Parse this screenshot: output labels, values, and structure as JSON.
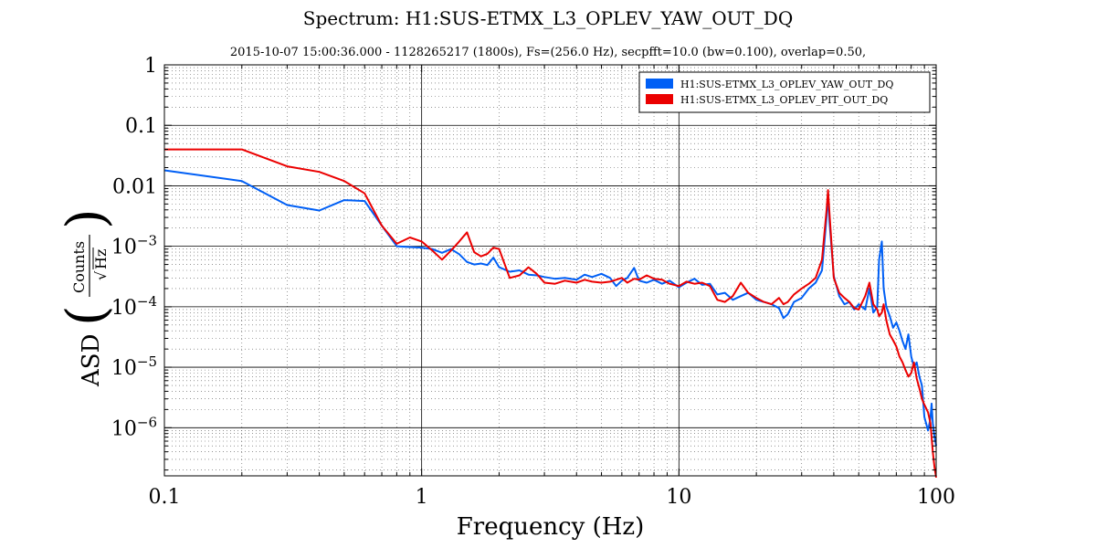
{
  "chart_data": {
    "type": "line",
    "title": "Spectrum: H1:SUS-ETMX_L3_OPLEV_YAW_OUT_DQ",
    "subtitle": "2015-10-07 15:00:36.000 - 1128265217 (1800s), Fs=(256.0 Hz), secpfft=10.0 (bw=0.100), overlap=0.50,",
    "xlabel": "Frequency (Hz)",
    "ylabel": {
      "prefix": "ASD",
      "numerator": "Counts",
      "denominator": "Hz"
    },
    "xscale": "log",
    "yscale": "log",
    "xlim": [
      0.1,
      100
    ],
    "ylim": [
      1.6e-07,
      1.0
    ],
    "grid": true,
    "legend_position": "top-right",
    "x_ticks": [
      {
        "value": 0.1,
        "label": "0.1"
      },
      {
        "value": 1,
        "label": "1"
      },
      {
        "value": 10,
        "label": "10"
      },
      {
        "value": 100,
        "label": "100"
      }
    ],
    "y_ticks": [
      {
        "value": 1,
        "label": "1"
      },
      {
        "value": 0.1,
        "label": "0.1"
      },
      {
        "value": 0.01,
        "label": "0.01"
      },
      {
        "value": 0.001,
        "label_base": "10",
        "label_exp": "−3"
      },
      {
        "value": 0.0001,
        "label_base": "10",
        "label_exp": "−4"
      },
      {
        "value": 1e-05,
        "label_base": "10",
        "label_exp": "−5"
      },
      {
        "value": 1e-06,
        "label_base": "10",
        "label_exp": "−6"
      }
    ],
    "series": [
      {
        "name": "H1:SUS-ETMX_L3_OPLEV_YAW_OUT_DQ",
        "color": "#005ff5",
        "points": [
          [
            0.1,
            0.018
          ],
          [
            0.2,
            0.012
          ],
          [
            0.3,
            0.0048
          ],
          [
            0.4,
            0.0039
          ],
          [
            0.5,
            0.0058
          ],
          [
            0.6,
            0.0056
          ],
          [
            0.7,
            0.0022
          ],
          [
            0.8,
            0.001
          ],
          [
            0.9,
            0.00097
          ],
          [
            1.0,
            0.00095
          ],
          [
            1.1,
            0.0009
          ],
          [
            1.2,
            0.00078
          ],
          [
            1.3,
            0.0009
          ],
          [
            1.4,
            0.00074
          ],
          [
            1.5,
            0.00055
          ],
          [
            1.6,
            0.0005
          ],
          [
            1.7,
            0.00052
          ],
          [
            1.8,
            0.00049
          ],
          [
            1.9,
            0.00065
          ],
          [
            2.0,
            0.00045
          ],
          [
            2.2,
            0.00038
          ],
          [
            2.4,
            0.0004
          ],
          [
            2.6,
            0.00034
          ],
          [
            2.8,
            0.00033
          ],
          [
            3.0,
            0.00031
          ],
          [
            3.3,
            0.00029
          ],
          [
            3.6,
            0.0003
          ],
          [
            4.0,
            0.00028
          ],
          [
            4.3,
            0.00034
          ],
          [
            4.6,
            0.00031
          ],
          [
            5.0,
            0.00035
          ],
          [
            5.4,
            0.0003
          ],
          [
            5.7,
            0.00022
          ],
          [
            6.0,
            0.00027
          ],
          [
            6.3,
            0.0003
          ],
          [
            6.7,
            0.00044
          ],
          [
            7.0,
            0.00027
          ],
          [
            7.5,
            0.00025
          ],
          [
            8.0,
            0.00028
          ],
          [
            8.6,
            0.00024
          ],
          [
            9.2,
            0.00027
          ],
          [
            10.0,
            0.00021
          ],
          [
            10.7,
            0.00025
          ],
          [
            11.5,
            0.00029
          ],
          [
            12.3,
            0.00023
          ],
          [
            13.2,
            0.00024
          ],
          [
            14.1,
            0.00016
          ],
          [
            15.1,
            0.00017
          ],
          [
            16.2,
            0.00013
          ],
          [
            17.4,
            0.00015
          ],
          [
            18.6,
            0.00017
          ],
          [
            20.0,
            0.00013
          ],
          [
            21.4,
            0.00012
          ],
          [
            22.9,
            0.00011
          ],
          [
            24.5,
            9.5e-05
          ],
          [
            25.5,
            6.5e-05
          ],
          [
            26.5,
            7.5e-05
          ],
          [
            28.0,
            0.00012
          ],
          [
            30.0,
            0.00014
          ],
          [
            32.0,
            0.0002
          ],
          [
            34.0,
            0.00025
          ],
          [
            36.0,
            0.0004
          ],
          [
            37.5,
            0.003
          ],
          [
            38.0,
            0.0075
          ],
          [
            38.5,
            0.0025
          ],
          [
            40.0,
            0.00032
          ],
          [
            42.0,
            0.00015
          ],
          [
            44.0,
            0.00011
          ],
          [
            46.0,
            0.00012
          ],
          [
            48.0,
            9e-05
          ],
          [
            50.0,
            0.00011
          ],
          [
            53.0,
            9e-05
          ],
          [
            55.0,
            0.0002
          ],
          [
            57.0,
            8e-05
          ],
          [
            59.0,
            0.0001
          ],
          [
            60.0,
            0.0006
          ],
          [
            61.5,
            0.0012
          ],
          [
            62.5,
            0.0002
          ],
          [
            64.0,
            0.0001
          ],
          [
            66.0,
            7e-05
          ],
          [
            68.0,
            4.5e-05
          ],
          [
            70.0,
            5.5e-05
          ],
          [
            72.0,
            4e-05
          ],
          [
            74.0,
            2.7e-05
          ],
          [
            76.0,
            2e-05
          ],
          [
            78.0,
            3.5e-05
          ],
          [
            80.0,
            1.5e-05
          ],
          [
            82.0,
            1e-05
          ],
          [
            84.0,
            1.2e-05
          ],
          [
            86.0,
            7e-06
          ],
          [
            88.0,
            5e-06
          ],
          [
            90.0,
            1.5e-06
          ],
          [
            93.0,
            9e-07
          ],
          [
            95.0,
            1.4e-06
          ],
          [
            96.0,
            2.5e-06
          ],
          [
            97.0,
            1.2e-06
          ],
          [
            98.5,
            7e-07
          ],
          [
            100.0,
            5e-07
          ]
        ]
      },
      {
        "name": "H1:SUS-ETMX_L3_OPLEV_PIT_OUT_DQ",
        "color": "#eb0000",
        "points": [
          [
            0.1,
            0.04
          ],
          [
            0.2,
            0.04
          ],
          [
            0.3,
            0.021
          ],
          [
            0.4,
            0.017
          ],
          [
            0.5,
            0.012
          ],
          [
            0.6,
            0.0075
          ],
          [
            0.7,
            0.0022
          ],
          [
            0.8,
            0.0011
          ],
          [
            0.9,
            0.0014
          ],
          [
            1.0,
            0.0012
          ],
          [
            1.1,
            0.00085
          ],
          [
            1.2,
            0.0006
          ],
          [
            1.3,
            0.00085
          ],
          [
            1.4,
            0.0012
          ],
          [
            1.5,
            0.0017
          ],
          [
            1.6,
            0.0008
          ],
          [
            1.7,
            0.00068
          ],
          [
            1.8,
            0.00075
          ],
          [
            1.9,
            0.00095
          ],
          [
            2.0,
            0.0009
          ],
          [
            2.2,
            0.0003
          ],
          [
            2.4,
            0.00033
          ],
          [
            2.6,
            0.00045
          ],
          [
            2.8,
            0.00035
          ],
          [
            3.0,
            0.00025
          ],
          [
            3.3,
            0.00024
          ],
          [
            3.6,
            0.00027
          ],
          [
            4.0,
            0.00025
          ],
          [
            4.3,
            0.00028
          ],
          [
            4.6,
            0.00026
          ],
          [
            5.0,
            0.00025
          ],
          [
            5.4,
            0.00026
          ],
          [
            5.7,
            0.00028
          ],
          [
            6.0,
            0.0003
          ],
          [
            6.3,
            0.00025
          ],
          [
            6.7,
            0.00029
          ],
          [
            7.0,
            0.00028
          ],
          [
            7.5,
            0.00033
          ],
          [
            8.0,
            0.00029
          ],
          [
            8.6,
            0.00028
          ],
          [
            9.2,
            0.00024
          ],
          [
            10.0,
            0.00022
          ],
          [
            10.7,
            0.00026
          ],
          [
            11.5,
            0.00024
          ],
          [
            12.3,
            0.00025
          ],
          [
            13.2,
            0.00022
          ],
          [
            14.1,
            0.00013
          ],
          [
            15.1,
            0.00012
          ],
          [
            16.2,
            0.00015
          ],
          [
            17.4,
            0.00025
          ],
          [
            18.6,
            0.00017
          ],
          [
            20.0,
            0.00014
          ],
          [
            21.4,
            0.00012
          ],
          [
            22.9,
            0.00011
          ],
          [
            24.5,
            0.00014
          ],
          [
            25.5,
            0.00011
          ],
          [
            26.5,
            0.00012
          ],
          [
            28.0,
            0.00016
          ],
          [
            30.0,
            0.0002
          ],
          [
            32.0,
            0.00024
          ],
          [
            34.0,
            0.0003
          ],
          [
            36.0,
            0.0006
          ],
          [
            37.5,
            0.004
          ],
          [
            38.0,
            0.0085
          ],
          [
            38.5,
            0.0035
          ],
          [
            40.0,
            0.0003
          ],
          [
            42.0,
            0.00017
          ],
          [
            44.0,
            0.00014
          ],
          [
            46.0,
            0.00012
          ],
          [
            48.0,
            9.5e-05
          ],
          [
            50.0,
            9e-05
          ],
          [
            53.0,
            0.00015
          ],
          [
            55.0,
            0.00025
          ],
          [
            57.0,
            0.00011
          ],
          [
            59.0,
            9e-05
          ],
          [
            60.0,
            7e-05
          ],
          [
            61.5,
            8e-05
          ],
          [
            62.5,
            0.00011
          ],
          [
            64.0,
            6e-05
          ],
          [
            66.0,
            3.5e-05
          ],
          [
            68.0,
            2.8e-05
          ],
          [
            70.0,
            2.2e-05
          ],
          [
            72.0,
            1.5e-05
          ],
          [
            74.0,
            1.2e-05
          ],
          [
            76.0,
            9e-06
          ],
          [
            78.0,
            7e-06
          ],
          [
            80.0,
            8e-06
          ],
          [
            82.0,
            1.2e-05
          ],
          [
            84.0,
            6.5e-06
          ],
          [
            86.0,
            4.5e-06
          ],
          [
            88.0,
            3e-06
          ],
          [
            90.0,
            2.4e-06
          ],
          [
            93.0,
            1.8e-06
          ],
          [
            95.0,
            1.2e-06
          ],
          [
            97.0,
            4e-07
          ],
          [
            98.5,
            2.2e-07
          ],
          [
            100.0,
            1.5e-07
          ]
        ]
      }
    ]
  }
}
